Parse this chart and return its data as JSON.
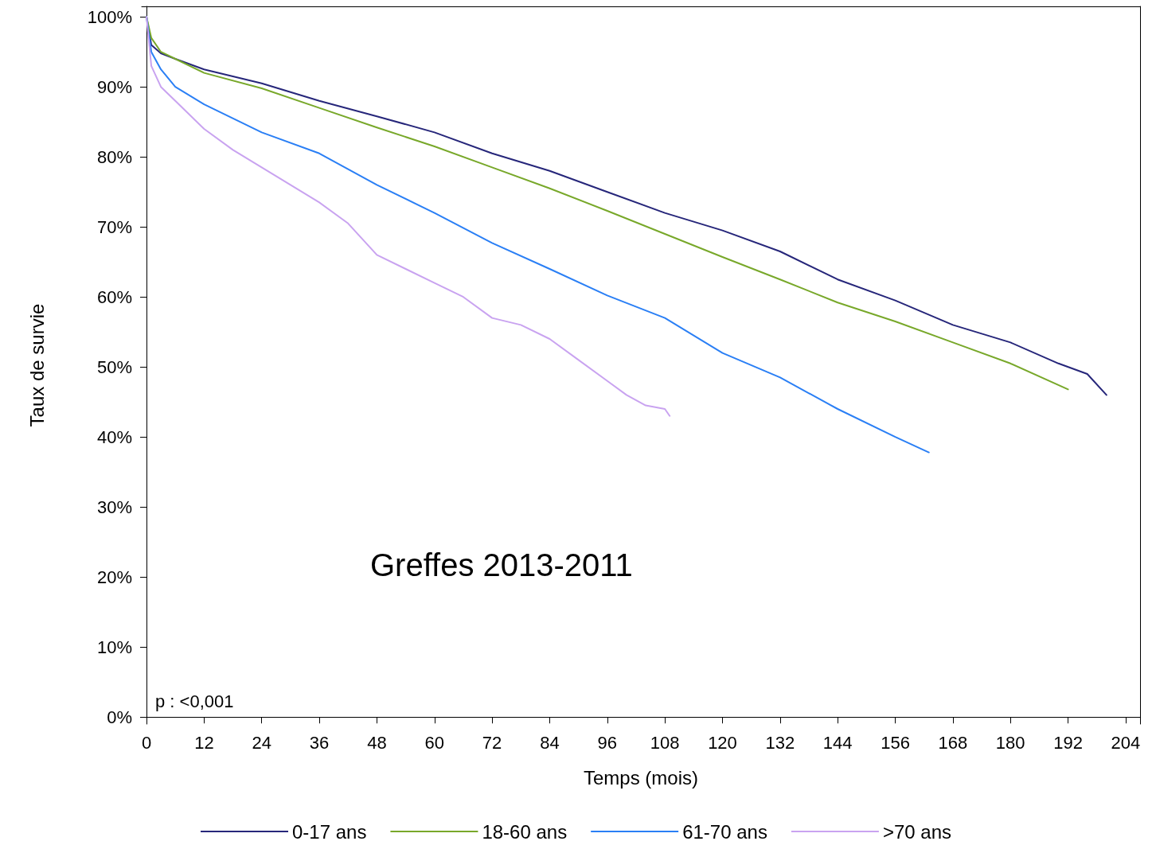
{
  "chart_data": {
    "type": "line",
    "xlabel": "Temps (mois)",
    "ylabel": "Taux de survie",
    "xlim": [
      -1,
      207
    ],
    "ylim": [
      -1,
      101.5
    ],
    "xticks": [
      0,
      12,
      24,
      36,
      48,
      60,
      72,
      84,
      96,
      108,
      120,
      132,
      144,
      156,
      168,
      180,
      192,
      204
    ],
    "yticks": [
      {
        "value": 0,
        "label": "0%"
      },
      {
        "value": 10,
        "label": "10%"
      },
      {
        "value": 20,
        "label": "20%"
      },
      {
        "value": 30,
        "label": "30%"
      },
      {
        "value": 40,
        "label": "40%"
      },
      {
        "value": 50,
        "label": "50%"
      },
      {
        "value": 60,
        "label": "60%"
      },
      {
        "value": 70,
        "label": "70%"
      },
      {
        "value": 80,
        "label": "80%"
      },
      {
        "value": 90,
        "label": "90%"
      },
      {
        "value": 100,
        "label": "100%"
      }
    ],
    "grid": false,
    "legend": "bottom",
    "marker": "none",
    "line_style": "solid",
    "annotations": [
      "Greffes 2013-2011",
      "p : <0,001"
    ],
    "series": [
      {
        "name": "0-17 ans",
        "color": "#26267a",
        "x": [
          0,
          1,
          3,
          6,
          12,
          24,
          36,
          48,
          60,
          72,
          84,
          96,
          108,
          120,
          132,
          144,
          156,
          168,
          180,
          190,
          196,
          200
        ],
        "values": [
          100,
          96,
          94.8,
          94,
          92.5,
          90.5,
          88,
          85.8,
          83.5,
          80.5,
          78,
          75,
          72,
          69.5,
          66.5,
          62.5,
          59.5,
          56,
          53.5,
          50.5,
          49,
          46
        ]
      },
      {
        "name": "18-60 ans",
        "color": "#78a82a",
        "x": [
          0,
          1,
          3,
          6,
          12,
          24,
          36,
          48,
          60,
          72,
          84,
          96,
          108,
          120,
          132,
          144,
          156,
          168,
          180,
          192
        ],
        "values": [
          100,
          97,
          95,
          94,
          92,
          89.8,
          87,
          84.2,
          81.5,
          78.5,
          75.5,
          72.3,
          69,
          65.7,
          62.5,
          59.2,
          56.5,
          53.5,
          50.5,
          46.8
        ]
      },
      {
        "name": "61-70 ans",
        "color": "#2a7ff5",
        "x": [
          0,
          1,
          3,
          6,
          12,
          24,
          36,
          48,
          60,
          72,
          84,
          96,
          108,
          120,
          132,
          144,
          156,
          163
        ],
        "values": [
          100,
          95,
          92.5,
          90,
          87.5,
          83.5,
          80.5,
          76,
          72,
          67.7,
          64,
          60.2,
          57,
          52,
          48.5,
          44,
          40,
          37.8
        ]
      },
      {
        "name": ">70 ans",
        "color": "#c9a3f0",
        "x": [
          0,
          1,
          3,
          6,
          12,
          18,
          24,
          30,
          36,
          42,
          48,
          54,
          60,
          66,
          72,
          78,
          84,
          90,
          96,
          100,
          104,
          108,
          109
        ],
        "values": [
          100,
          93,
          90,
          88,
          84,
          81,
          78.5,
          76,
          73.5,
          70.5,
          66,
          64,
          62,
          60,
          57,
          56,
          54,
          51,
          48,
          46,
          44.5,
          44,
          43
        ]
      }
    ]
  }
}
